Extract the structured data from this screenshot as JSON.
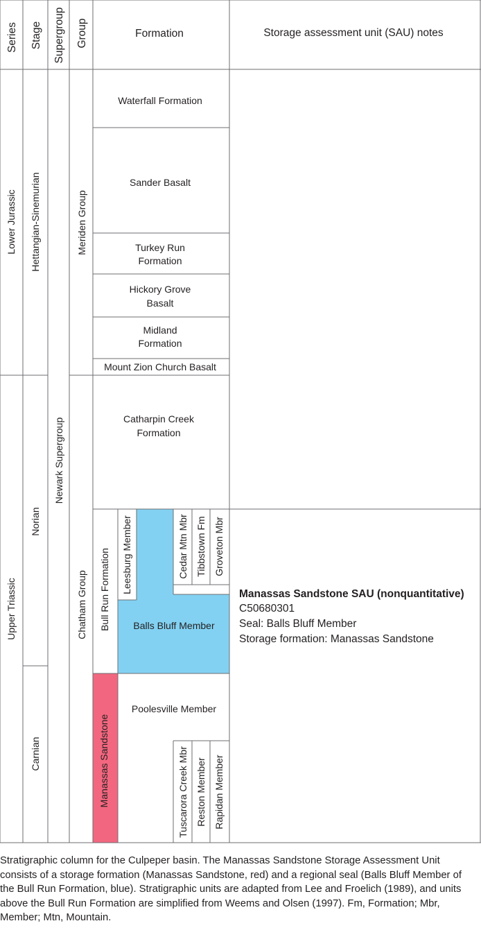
{
  "headers": {
    "series": "Series",
    "stage": "Stage",
    "supergroup": "Supergroup",
    "group": "Group",
    "formation": "Formation",
    "notes": "Storage assessment unit (SAU) notes"
  },
  "series": [
    "Lower Jurassic",
    "Upper Triassic"
  ],
  "stages": [
    "Hettangian-Sinemurian",
    "Norian",
    "Carnian"
  ],
  "supergroup": "Newark Supergroup",
  "groups": [
    "Meriden Group",
    "Chatham Group"
  ],
  "formations": {
    "waterfall": "Waterfall Formation",
    "sander": "Sander Basalt",
    "turkey_run": [
      "Turkey Run",
      "Formation"
    ],
    "hickory_grove": [
      "Hickory Grove",
      "Basalt"
    ],
    "midland": [
      "Midland",
      "Formation"
    ],
    "mount_zion": "Mount Zion Church Basalt",
    "catharpin": [
      "Catharpin Creek",
      "Formation"
    ],
    "bull_run": "Bull Run Formation",
    "leesburg": "Leesburg Member",
    "cedar_mtn": "Cedar Mtn Mbr",
    "tibbstown": "Tibbstown Fm",
    "groveton": "Groveton Mbr",
    "balls_bluff": "Balls Bluff Member",
    "manassas": "Manassas Sandstone",
    "poolesville": "Poolesville Member",
    "tuscarora": "Tuscarora Creek Mbr",
    "reston": "Reston Member",
    "rapidan": "Rapidan Member"
  },
  "sau_note": {
    "title": "Manassas Sandstone SAU (nonquantitative)",
    "code": "C50680301",
    "seal": "Seal: Balls Bluff Member",
    "storage": "Storage formation: Manassas Sandstone"
  },
  "colors": {
    "storage_formation": "#f2677f",
    "seal": "#82d1f2",
    "lines": "#6d6e71"
  },
  "caption": "Stratigraphic column for the Culpeper basin. The Manassas Sandstone Storage Assessment Unit consists of a storage formation (Manassas Sandstone, red) and a regional seal (Balls Bluff Member of the Bull Run Formation, blue). Stratigraphic units are adapted from Lee and Froelich (1989), and units above the Bull Run Formation are simplified from Weems and Olsen (1997). Fm, Formation; Mbr, Member; Mtn, Mountain."
}
